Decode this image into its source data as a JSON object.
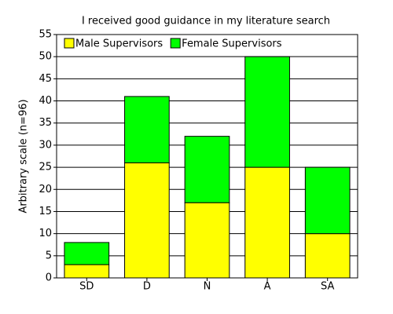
{
  "chart_data": {
    "type": "stacked_bar",
    "title": "I received good guidance in my literature search",
    "y_label": "Arbitrary scale (n=96)",
    "categories": [
      "SD",
      "D",
      "N",
      "A",
      "SA"
    ],
    "series": [
      {
        "name": "Male Supervisors",
        "color": "#ffff00",
        "values": [
          3,
          26,
          17,
          25,
          10
        ]
      },
      {
        "name": "Female Supervisors",
        "color": "#00ff00",
        "values": [
          5,
          15,
          15,
          25,
          15
        ]
      }
    ],
    "ylim": [
      0,
      55
    ],
    "yticks": [
      0,
      5,
      10,
      15,
      20,
      25,
      30,
      35,
      40,
      45,
      50,
      55
    ],
    "grid": true
  }
}
